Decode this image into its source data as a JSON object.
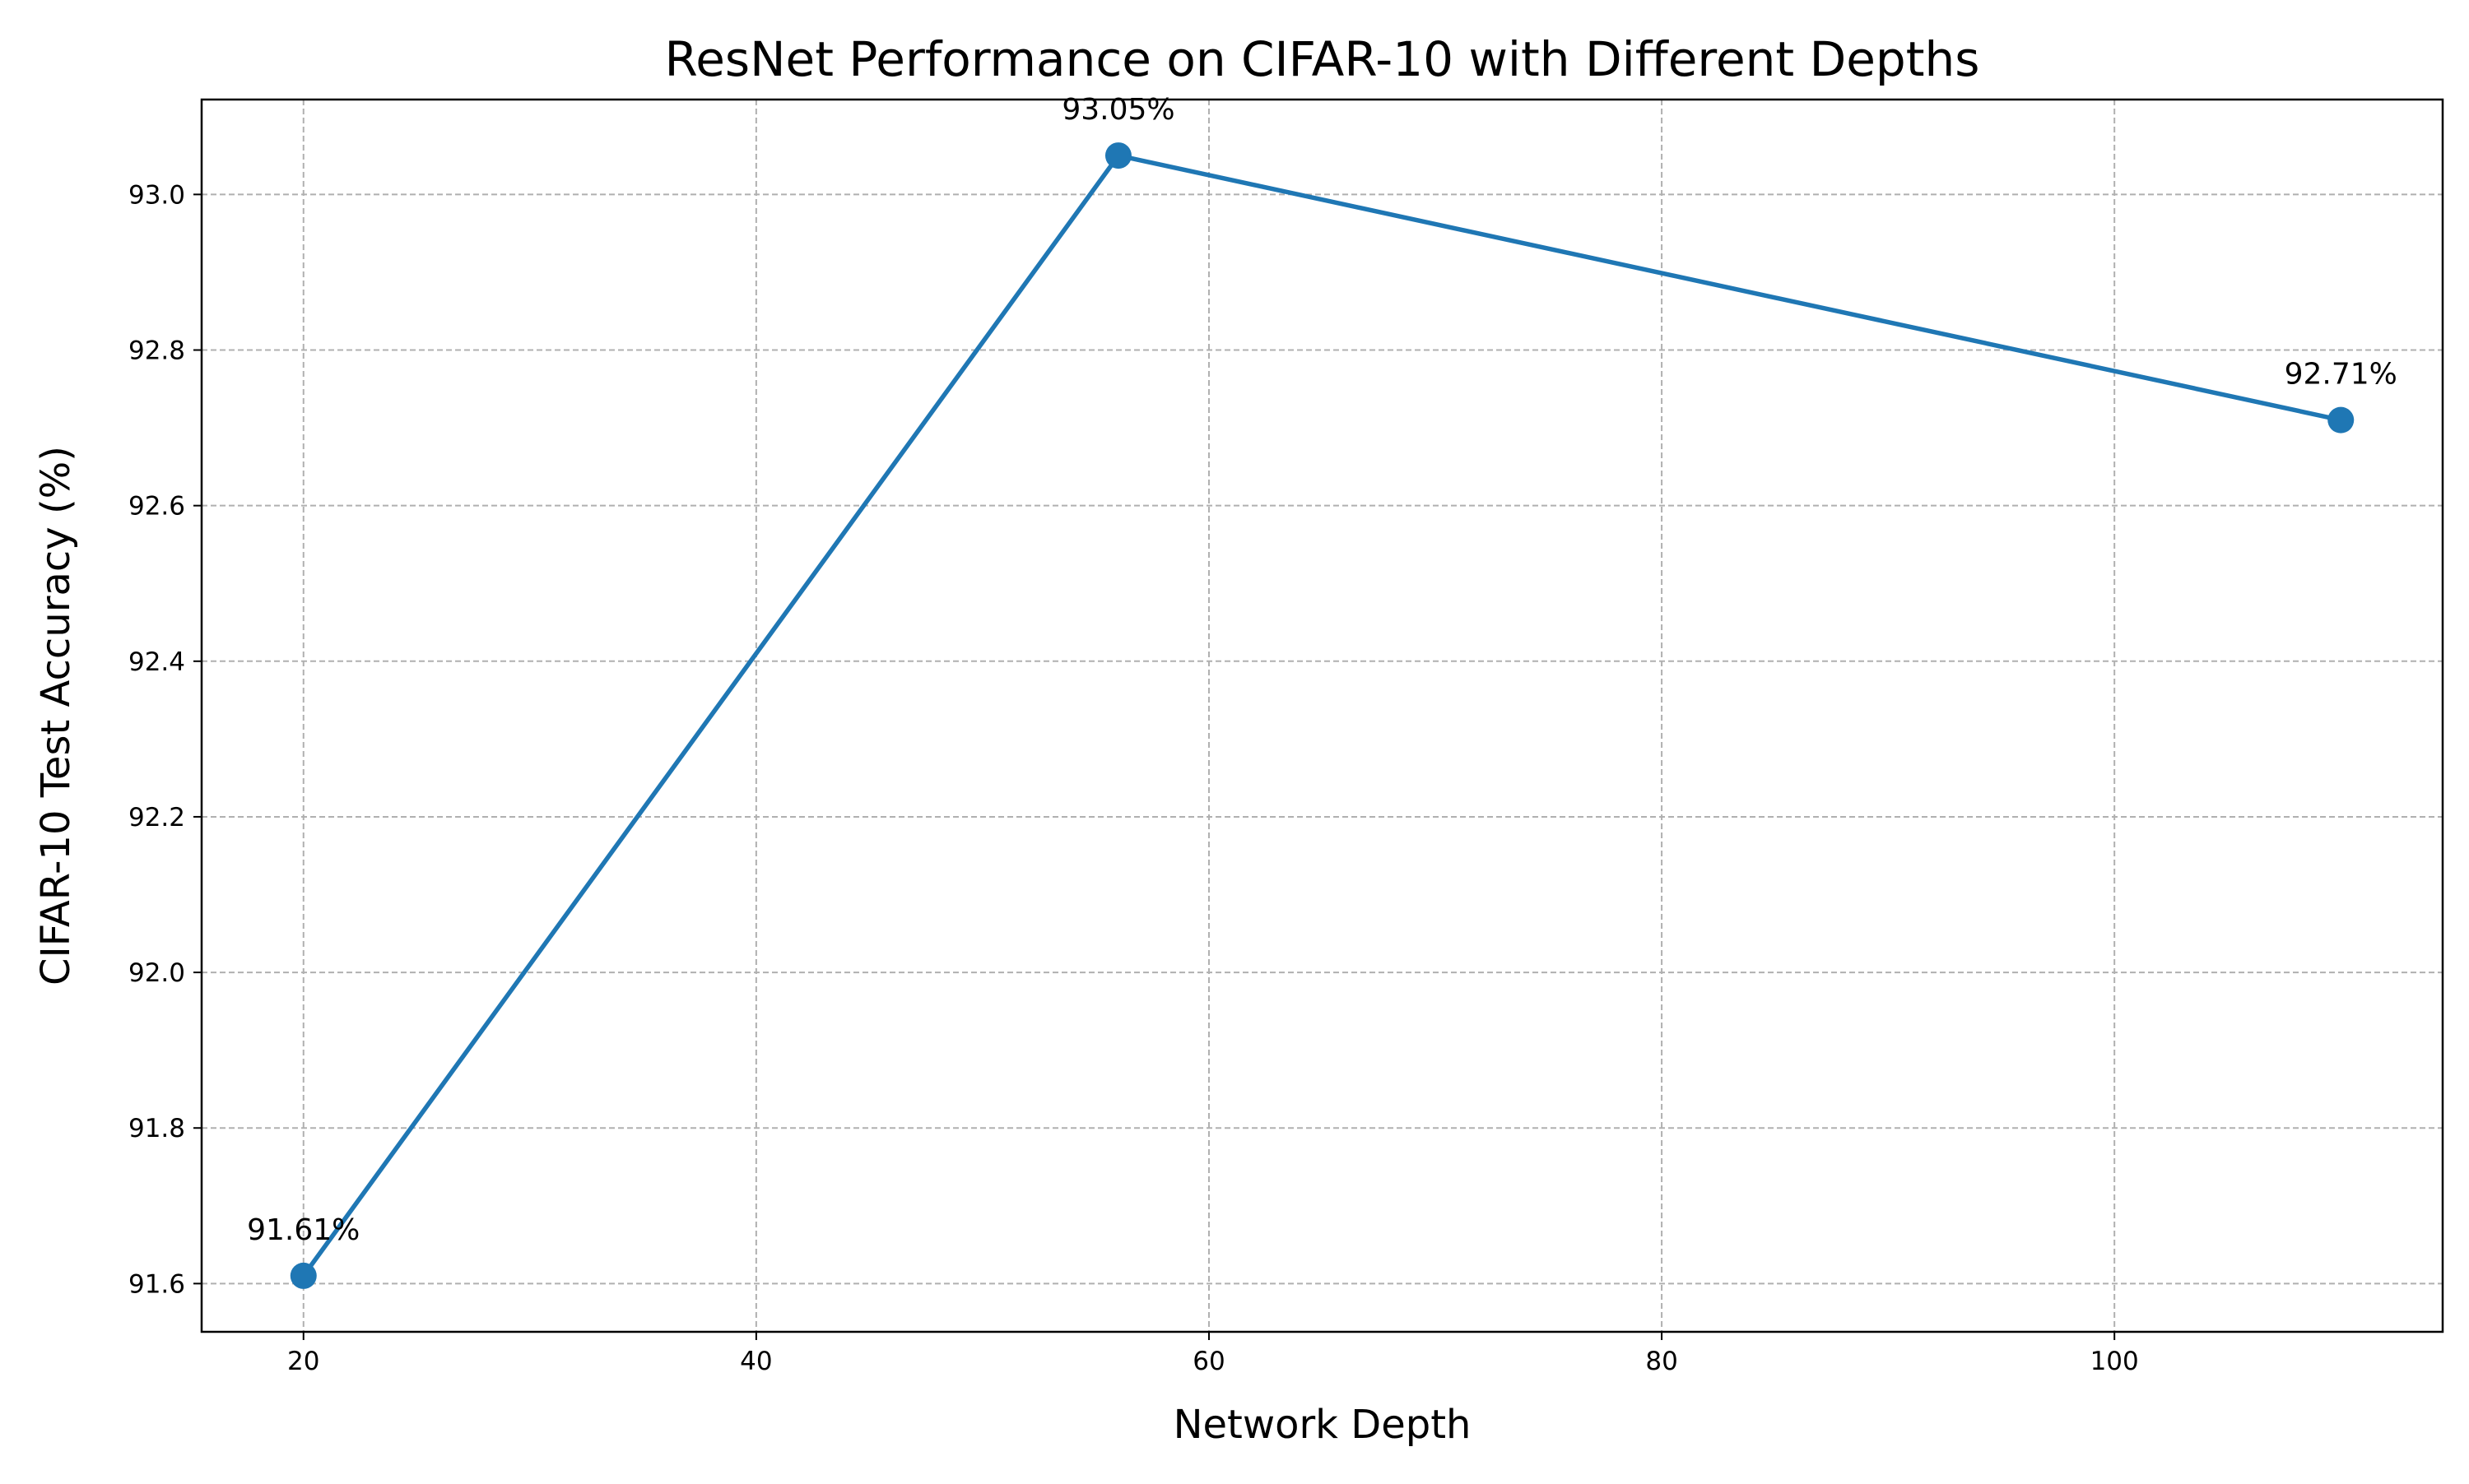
{
  "chart_data": {
    "type": "line",
    "title": "ResNet Performance on CIFAR-10 with Different Depths",
    "xlabel": "Network Depth",
    "ylabel": "CIFAR-10 Test Accuracy (%)",
    "x": [
      20,
      56,
      110
    ],
    "series": [
      {
        "values": [
          91.61,
          93.05,
          92.71
        ],
        "color": "#1f77b4",
        "marker": "circle",
        "data_labels": [
          "91.61%",
          "93.05%",
          "92.71%"
        ]
      }
    ],
    "xlim": [
      15.5,
      114.5
    ],
    "ylim": [
      91.538,
      93.122
    ],
    "xticks": [
      20,
      40,
      60,
      80,
      100
    ],
    "xtick_labels": [
      "20",
      "40",
      "60",
      "80",
      "100"
    ],
    "yticks": [
      91.6,
      91.8,
      92.0,
      92.2,
      92.4,
      92.6,
      92.8,
      93.0
    ],
    "ytick_labels": [
      "91.6",
      "91.8",
      "92.0",
      "92.2",
      "92.4",
      "92.6",
      "92.8",
      "93.0"
    ],
    "grid": true,
    "grid_style": "dashed",
    "grid_color": "#b0b0b0",
    "legend": false
  }
}
